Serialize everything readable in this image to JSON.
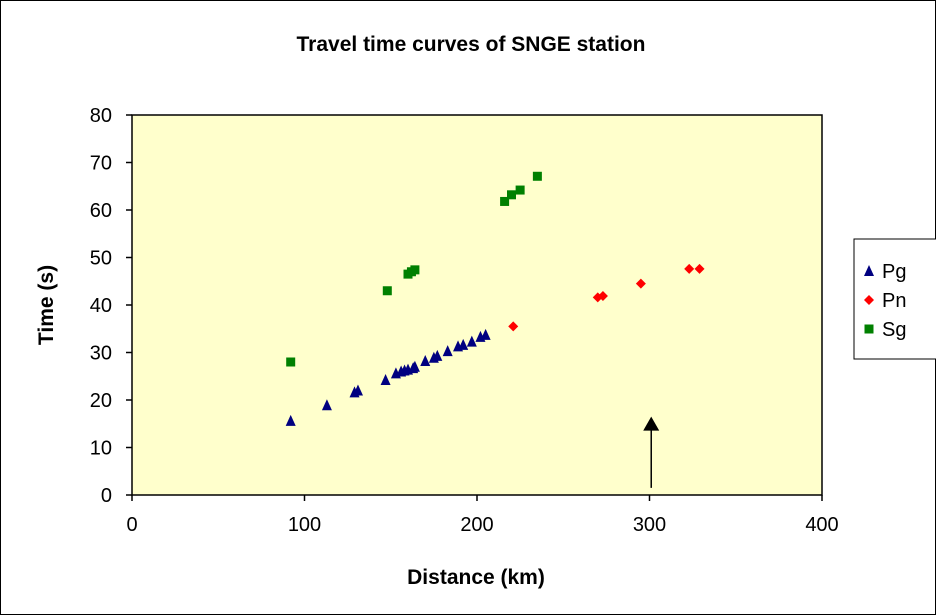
{
  "chart_data": {
    "type": "scatter",
    "title": "Travel time curves of SNGE station",
    "xlabel": "Distance (km)",
    "ylabel": "Time (s)",
    "xlim": [
      0,
      400
    ],
    "ylim": [
      0,
      80
    ],
    "x_ticks": [
      "0",
      "100",
      "200",
      "300",
      "400"
    ],
    "y_ticks": [
      "0",
      "10",
      "20",
      "30",
      "40",
      "50",
      "60",
      "70",
      "80"
    ],
    "grid": false,
    "legend_position": "right",
    "plot_background": "#ffffcc",
    "series": [
      {
        "name": "Pg",
        "marker": "triangle",
        "color": "#000080",
        "points": [
          [
            92,
            15.6
          ],
          [
            113,
            18.9
          ],
          [
            129,
            21.6
          ],
          [
            131,
            22.0
          ],
          [
            147,
            24.2
          ],
          [
            153,
            25.6
          ],
          [
            156,
            26.0
          ],
          [
            158,
            26.2
          ],
          [
            160,
            26.4
          ],
          [
            163,
            26.7
          ],
          [
            164,
            27.0
          ],
          [
            170,
            28.2
          ],
          [
            175,
            28.9
          ],
          [
            177,
            29.3
          ],
          [
            183,
            30.3
          ],
          [
            189,
            31.3
          ],
          [
            192,
            31.6
          ],
          [
            197,
            32.3
          ],
          [
            202,
            33.3
          ],
          [
            205,
            33.7
          ]
        ]
      },
      {
        "name": "Pn",
        "marker": "diamond",
        "color": "#ff0000",
        "points": [
          [
            221,
            35.5
          ],
          [
            270,
            41.6
          ],
          [
            273,
            41.9
          ],
          [
            295,
            44.5
          ],
          [
            323,
            47.6
          ],
          [
            329,
            47.6
          ]
        ]
      },
      {
        "name": "Sg",
        "marker": "square",
        "color": "#008000",
        "points": [
          [
            92,
            28.0
          ],
          [
            148,
            43.0
          ],
          [
            160,
            46.5
          ],
          [
            162,
            47.0
          ],
          [
            164,
            47.4
          ],
          [
            216,
            61.8
          ],
          [
            220,
            63.2
          ],
          [
            225,
            64.2
          ],
          [
            235,
            67.1
          ]
        ]
      }
    ],
    "annotations": [
      {
        "type": "arrow",
        "x": 301,
        "y_from": 1.5,
        "y_to": 16.5,
        "color": "#000000"
      }
    ]
  }
}
